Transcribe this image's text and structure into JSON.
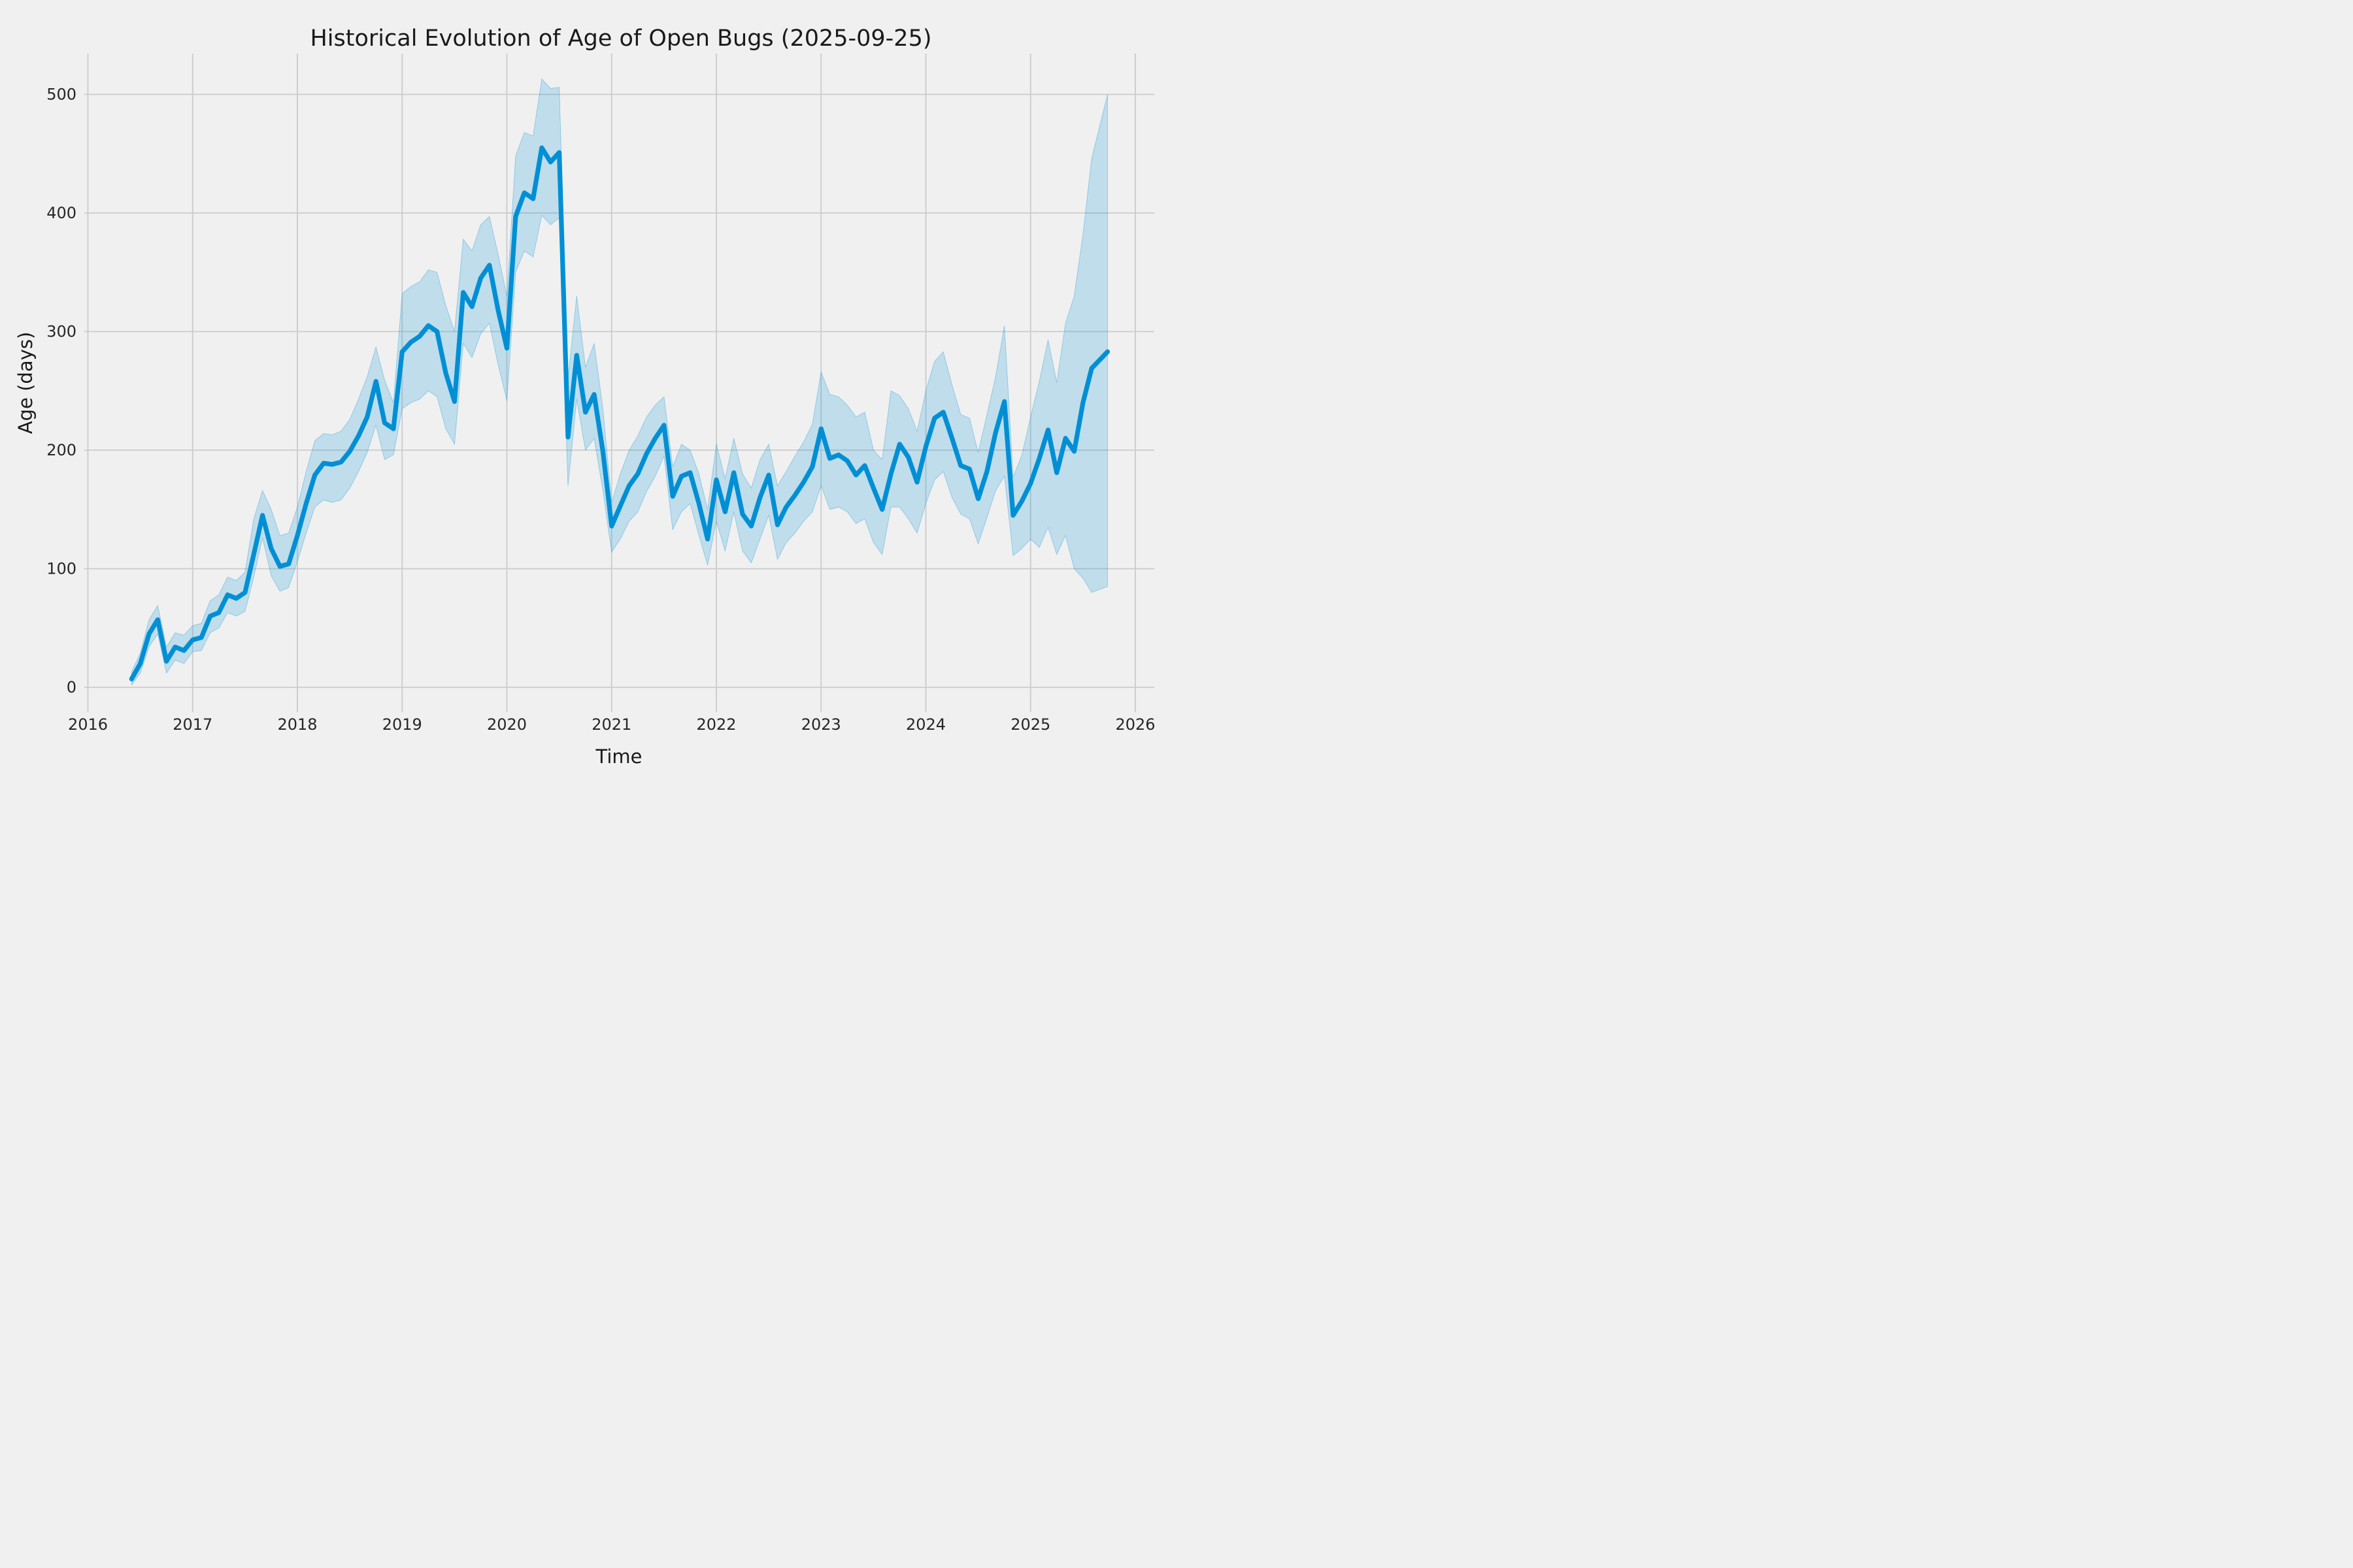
{
  "chart_data": {
    "type": "line",
    "title": "Historical Evolution of Age of Open Bugs (2025-09-25)",
    "xlabel": "Time",
    "ylabel": "Age (days)",
    "x_ticks": [
      2016,
      2017,
      2018,
      2019,
      2020,
      2021,
      2022,
      2023,
      2024,
      2025,
      2026
    ],
    "y_ticks": [
      0,
      100,
      200,
      300,
      400,
      500
    ],
    "xlim": [
      2015.6,
      2026.18
    ],
    "ylim": [
      -24,
      533
    ],
    "grid": true,
    "legend_position": "none",
    "start_month": "2016-06",
    "end_month": "2025-09",
    "x_end": 2025.735,
    "colors": {
      "line": "#008fd5",
      "band_fill": "rgba(0,143,213,0.20)",
      "band_edge": "rgba(0,143,213,0.40)",
      "background": "#f0f0f0",
      "grid": "#cbcbcb",
      "text": "#262626"
    },
    "series": [
      {
        "name": "mean age (days)",
        "values": [
          7,
          20,
          45,
          57,
          22,
          34,
          31,
          40,
          42,
          60,
          63,
          78,
          75,
          80,
          112,
          145,
          117,
          102,
          104,
          128,
          155,
          179,
          189,
          188,
          190,
          199,
          212,
          228,
          258,
          223,
          218,
          283,
          291,
          296,
          305,
          300,
          265,
          241,
          333,
          321,
          345,
          356,
          318,
          286,
          397,
          417,
          412,
          455,
          443,
          451,
          211,
          280,
          232,
          247,
          199,
          136,
          153,
          170,
          180,
          197,
          210,
          221,
          161,
          178,
          181,
          155,
          125,
          175,
          148,
          181,
          146,
          136,
          160,
          179,
          137,
          152,
          162,
          173,
          186,
          218,
          193,
          196,
          191,
          179,
          187,
          168,
          150,
          180,
          205,
          194,
          173,
          203,
          227,
          232,
          210,
          187,
          184,
          159,
          182,
          215,
          241,
          145,
          157,
          172,
          193,
          217,
          181,
          210,
          199,
          240,
          269,
          283
        ]
      },
      {
        "name": "band lower bound",
        "values": [
          2,
          12,
          34,
          45,
          12,
          23,
          20,
          30,
          31,
          46,
          50,
          63,
          60,
          64,
          93,
          126,
          94,
          81,
          84,
          106,
          130,
          152,
          158,
          156,
          158,
          168,
          182,
          198,
          221,
          192,
          196,
          235,
          240,
          243,
          250,
          245,
          218,
          205,
          290,
          278,
          298,
          307,
          272,
          242,
          350,
          368,
          363,
          398,
          390,
          396,
          170,
          243,
          200,
          210,
          166,
          114,
          125,
          140,
          148,
          165,
          178,
          195,
          133,
          148,
          155,
          128,
          103,
          140,
          115,
          148,
          115,
          105,
          125,
          145,
          108,
          122,
          130,
          140,
          148,
          170,
          150,
          152,
          148,
          138,
          142,
          122,
          112,
          152,
          152,
          142,
          130,
          155,
          175,
          182,
          160,
          146,
          142,
          121,
          143,
          166,
          178,
          111,
          117,
          125,
          118,
          135,
          112,
          128,
          100,
          92,
          80,
          85
        ]
      },
      {
        "name": "band upper bound",
        "values": [
          13,
          29,
          57,
          69,
          34,
          46,
          44,
          52,
          54,
          73,
          78,
          93,
          90,
          97,
          142,
          166,
          150,
          128,
          130,
          152,
          182,
          208,
          214,
          213,
          216,
          226,
          243,
          262,
          287,
          259,
          240,
          332,
          338,
          342,
          352,
          350,
          322,
          300,
          378,
          368,
          390,
          397,
          365,
          330,
          448,
          468,
          465,
          513,
          505,
          506,
          260,
          330,
          270,
          290,
          235,
          156,
          180,
          200,
          212,
          228,
          238,
          245,
          186,
          205,
          200,
          180,
          150,
          205,
          176,
          210,
          180,
          168,
          192,
          205,
          170,
          182,
          195,
          207,
          222,
          266,
          247,
          245,
          238,
          228,
          232,
          200,
          192,
          250,
          246,
          235,
          216,
          250,
          275,
          283,
          255,
          230,
          227,
          198,
          230,
          262,
          305,
          177,
          196,
          228,
          258,
          293,
          257,
          307,
          330,
          382,
          446,
          500
        ]
      }
    ]
  }
}
